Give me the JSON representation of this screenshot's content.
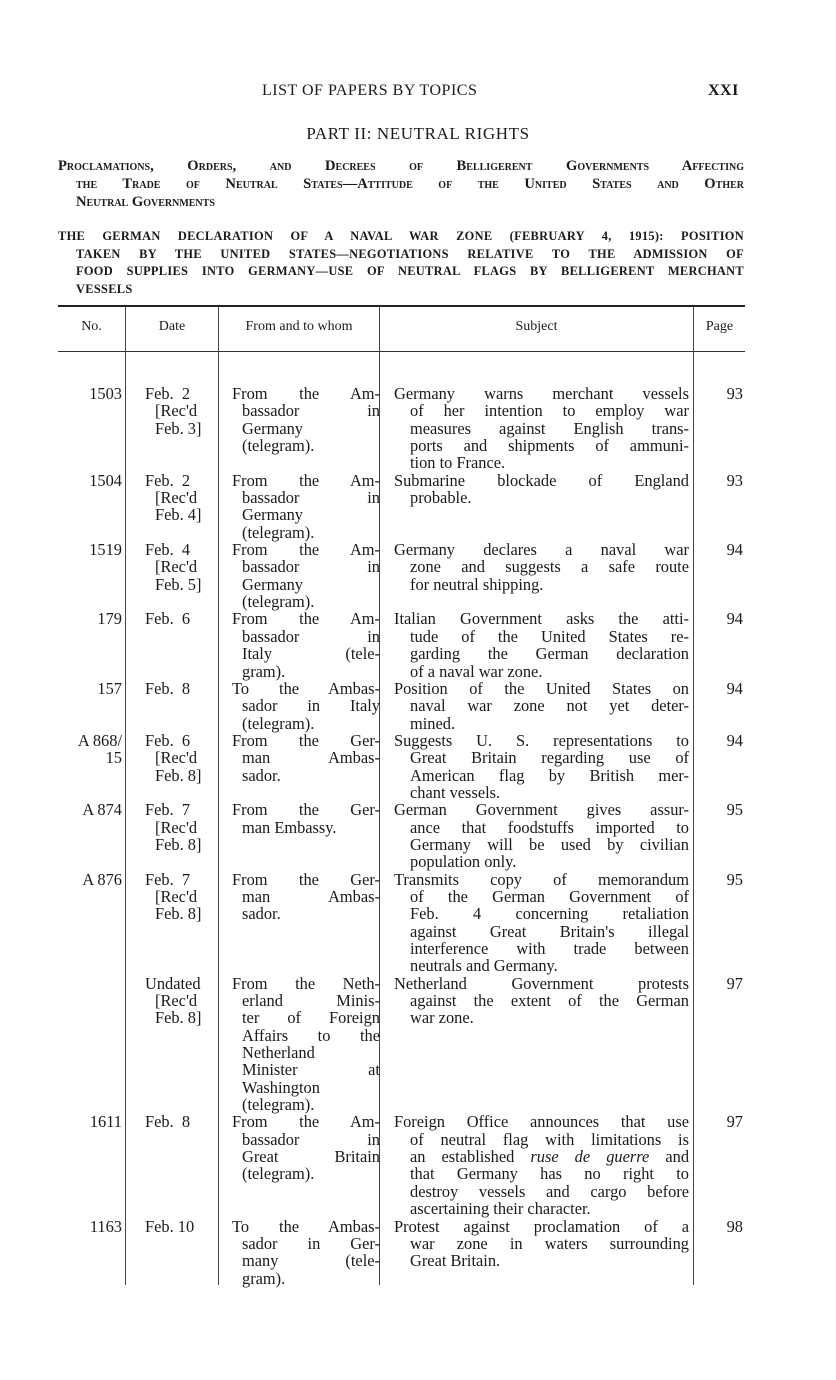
{
  "running_head": {
    "title": "LIST OF PAPERS BY TOPICS",
    "page": "XXI"
  },
  "part_title": "PART II: NEUTRAL RIGHTS",
  "topic_lines": [
    "Proclamations, Orders, and Decrees of Belligerent Governments Affecting",
    "the Trade of Neutral States—Attitude of the United States and Other",
    "Neutral Governments"
  ],
  "subtopic_lines": [
    "THE GERMAN DECLARATION OF A NAVAL WAR ZONE (FEBRUARY 4, 1915): POSITION",
    "TAKEN BY THE UNITED STATES—NEGOTIATIONS RELATIVE TO THE ADMISSION OF",
    "FOOD SUPPLIES INTO GERMANY—USE OF NEUTRAL FLAGS BY BELLIGERENT MERCHANT",
    "VESSELS"
  ],
  "table": {
    "headers": [
      "No.",
      "Date",
      "From and to whom",
      "Subject",
      "Page"
    ],
    "rows": [
      {
        "no": [
          "1503"
        ],
        "date": [
          "Feb.  2",
          "[Rec'd",
          "Feb. 3]"
        ],
        "from": [
          "From the Am-",
          "bassador in",
          "Germany",
          "(telegram)."
        ],
        "subject": [
          "Germany warns merchant vessels",
          "of her intention to employ war",
          "measures against English trans-",
          "ports and shipments of ammuni-",
          "tion to France."
        ],
        "page": "93"
      },
      {
        "no": [
          "1504"
        ],
        "date": [
          "Feb.  2",
          "[Rec'd",
          "Feb. 4]"
        ],
        "from": [
          "From the Am-",
          "bassador in",
          "Germany",
          "(telegram)."
        ],
        "subject": [
          "Submarine blockade of England",
          "probable."
        ],
        "page": "93"
      },
      {
        "no": [
          "1519"
        ],
        "date": [
          "Feb.  4",
          "[Rec'd",
          "Feb. 5]"
        ],
        "from": [
          "From the Am-",
          "bassador in",
          "Germany",
          "(telegram)."
        ],
        "subject": [
          "Germany declares a naval war",
          "zone and suggests a safe route",
          "for neutral shipping."
        ],
        "page": "94"
      },
      {
        "no": [
          "179"
        ],
        "date": [
          "Feb.  6"
        ],
        "from": [
          "From the Am-",
          "bassador in",
          "Italy (tele-",
          "gram)."
        ],
        "subject": [
          "Italian Government asks the atti-",
          "tude of the United States re-",
          "garding the German declaration",
          "of a naval war zone."
        ],
        "page": "94"
      },
      {
        "no": [
          "157"
        ],
        "date": [
          "Feb.  8"
        ],
        "from": [
          "To the Ambas-",
          "sador in Italy",
          "(telegram)."
        ],
        "subject": [
          "Position of the United States on",
          "naval war zone not yet deter-",
          "mined."
        ],
        "page": "94"
      },
      {
        "no": [
          "A 868/",
          "15"
        ],
        "date": [
          "Feb.  6",
          "[Rec'd",
          "Feb. 8]"
        ],
        "from": [
          "From the Ger-",
          "man Ambas-",
          "sador."
        ],
        "subject": [
          "Suggests U. S. representations to",
          "Great Britain regarding use of",
          "American flag by British mer-",
          "chant vessels."
        ],
        "page": "94"
      },
      {
        "no": [
          "A 874"
        ],
        "date": [
          "Feb.  7",
          "[Rec'd",
          "Feb. 8]"
        ],
        "from": [
          "From the Ger-",
          "man Embassy."
        ],
        "subject": [
          "German Government gives assur-",
          "ance that foodstuffs imported to",
          "Germany will be used by civilian",
          "population only."
        ],
        "page": "95"
      },
      {
        "no": [
          "A 876"
        ],
        "date": [
          "Feb.  7",
          "[Rec'd",
          "Feb. 8]"
        ],
        "from": [
          "From the Ger-",
          "man Ambas-",
          "sador."
        ],
        "subject": [
          "Transmits copy of memorandum",
          "of the German Government of",
          "Feb. 4 concerning retaliation",
          "against Great Britain's illegal",
          "interference with trade between",
          "neutrals and Germany."
        ],
        "page": "95"
      },
      {
        "no": [
          ""
        ],
        "date": [
          "Undated",
          "[Rec'd",
          "Feb. 8]"
        ],
        "from": [
          "From the Neth-",
          "erland Minis-",
          "ter of Foreign",
          "Affairs to the",
          "Netherland",
          "Minister at",
          "Washington",
          "(telegram)."
        ],
        "subject": [
          "Netherland Government protests",
          "against the extent of the German",
          "war zone."
        ],
        "page": "97"
      },
      {
        "no": [
          "1611"
        ],
        "date": [
          "Feb.  8"
        ],
        "from": [
          "From the Am-",
          "bassador in",
          "Great Britain",
          "(telegram)."
        ],
        "subject": [
          "Foreign Office announces that use",
          "of neutral flag with limitations is",
          "an established ruse de guerre and",
          "that Germany has no right to",
          "destroy vessels and cargo before",
          "ascertaining their character."
        ],
        "page": "97"
      },
      {
        "no": [
          "1163"
        ],
        "date": [
          "Feb. 10"
        ],
        "from": [
          "To the Ambas-",
          "sador in Ger-",
          "many (tele-",
          "gram)."
        ],
        "subject": [
          "Protest against proclamation of a",
          "war zone in waters surrounding",
          "Great Britain."
        ],
        "page": "98"
      }
    ]
  }
}
